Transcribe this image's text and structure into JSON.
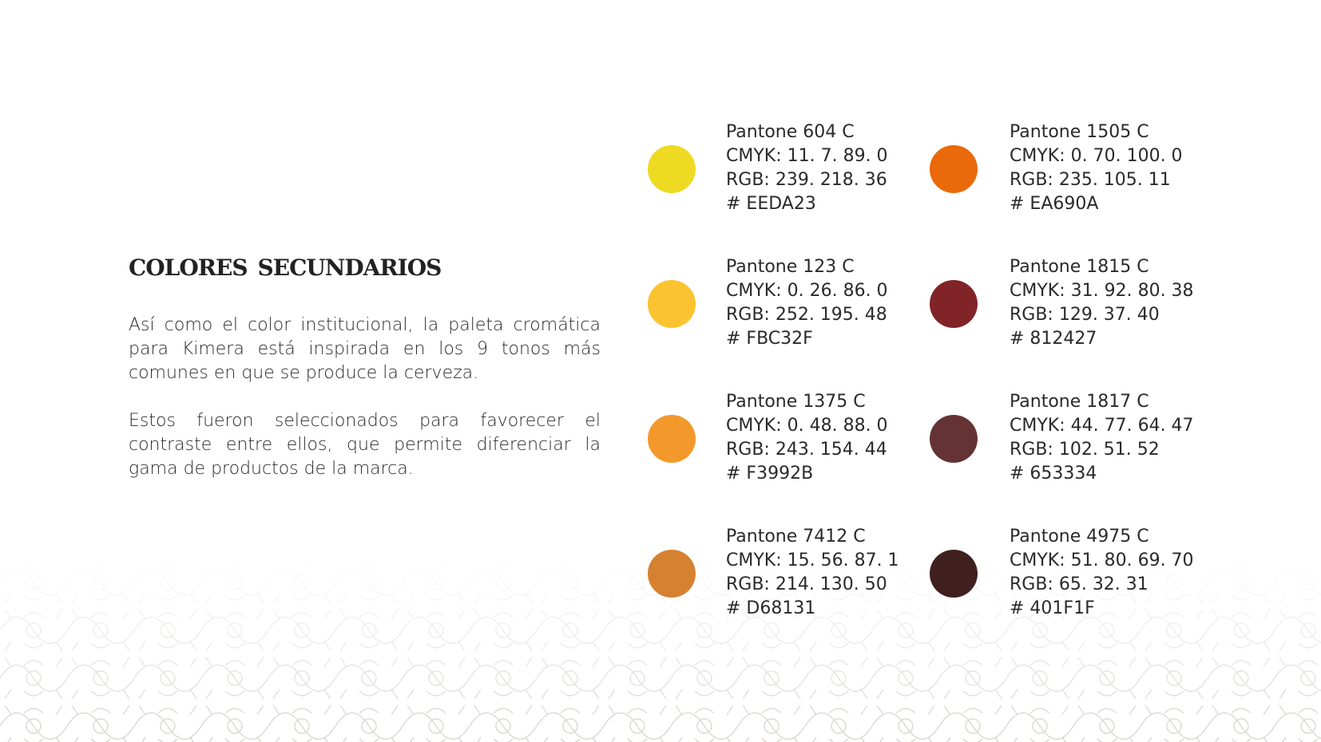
{
  "title": "Colores secundarios",
  "paragraphs": [
    "Así como el color institucional, la paleta cromática para Kimera está inspirada en los 9 tonos más comunes en que se produce la cerveza.",
    "Estos fueron seleccionados para favorecer el contraste entre ellos, que permite diferenciar la gama de productos de la marca."
  ],
  "swatches": [
    {
      "pantone": "Pantone 604 C",
      "cmyk": "CMYK: 11. 7. 89. 0",
      "rgb": "RGB: 239. 218. 36",
      "hex": "# EEDA23",
      "color": "#EEDA23"
    },
    {
      "pantone": "Pantone 1505 C",
      "cmyk": "CMYK: 0. 70. 100. 0",
      "rgb": "RGB: 235. 105. 11",
      "hex": "# EA690A",
      "color": "#EA690A"
    },
    {
      "pantone": "Pantone 123 C",
      "cmyk": "CMYK: 0. 26. 86. 0",
      "rgb": "RGB: 252. 195. 48",
      "hex": "# FBC32F",
      "color": "#FBC32F"
    },
    {
      "pantone": "Pantone 1815 C",
      "cmyk": "CMYK: 31. 92. 80. 38",
      "rgb": "RGB: 129. 37. 40",
      "hex": "# 812427",
      "color": "#812427"
    },
    {
      "pantone": "Pantone 1375 C",
      "cmyk": "CMYK: 0. 48. 88. 0",
      "rgb": "RGB: 243. 154. 44",
      "hex": "# F3992B",
      "color": "#F3992B"
    },
    {
      "pantone": "Pantone 1817 C",
      "cmyk": "CMYK: 44. 77. 64. 47",
      "rgb": "RGB: 102. 51. 52",
      "hex": "# 653334",
      "color": "#653334"
    },
    {
      "pantone": "Pantone 7412 C",
      "cmyk": "CMYK: 15. 56. 87. 1",
      "rgb": "RGB: 214. 130. 50",
      "hex": "# D68131",
      "color": "#D68131"
    },
    {
      "pantone": "Pantone 4975 C",
      "cmyk": "CMYK: 51. 80. 69. 70",
      "rgb": "RGB: 65. 32. 31",
      "hex": "# 401F1F",
      "color": "#401F1F"
    }
  ]
}
